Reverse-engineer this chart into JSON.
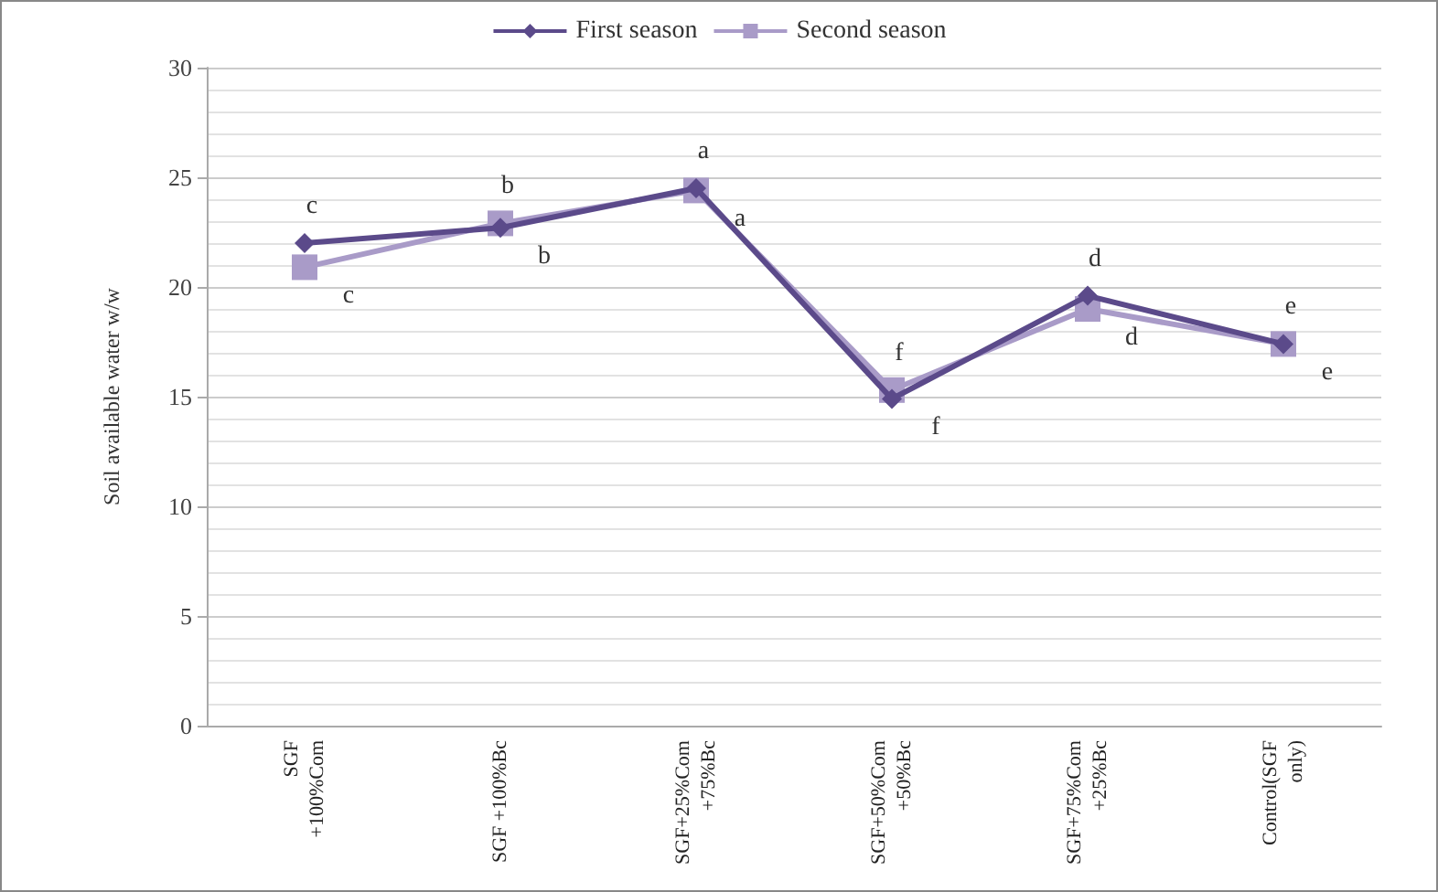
{
  "chart_data": {
    "type": "line",
    "ylabel": "Soil available water w/w",
    "categories": [
      "SGF\n+100%Com",
      "SGF +100%Bc",
      "SGF+25%Com\n+75%Bc",
      "SGF+50%Com\n+50%Bc",
      "SGF+75%Com\n+25%Bc",
      "Control(SGF\nonly)"
    ],
    "series": [
      {
        "name": "First season",
        "color": "#5b4a8a",
        "marker": "diamond",
        "values": [
          22.0,
          22.7,
          24.5,
          14.9,
          19.6,
          17.4
        ]
      },
      {
        "name": "Second season",
        "color": "#a99bc8",
        "marker": "square",
        "values": [
          20.9,
          22.9,
          24.4,
          15.3,
          19.0,
          17.4
        ]
      }
    ],
    "ylim": [
      0,
      30
    ],
    "yticks": [
      0,
      5,
      10,
      15,
      20,
      25,
      30
    ],
    "grid": "y",
    "legend": "top",
    "annotations": [
      {
        "text": "c",
        "x": "SGF\n+100%Com",
        "y": 22.0
      },
      {
        "text": "b",
        "x": "SGF +100%Bc",
        "y": 22.7
      },
      {
        "text": "a",
        "x": "SGF+25%Com\n+75%Bc",
        "y": 24.5
      },
      {
        "text": "f",
        "x": "SGF+50%Com\n+50%Bc",
        "y": 14.9
      },
      {
        "text": "d",
        "x": "SGF+75%Com\n+25%Bc",
        "y": 19.6
      },
      {
        "text": "e",
        "x": "Control(SGF\nonly)",
        "y": 17.4
      },
      {
        "text": "c",
        "x": "SGF\n+100%Com",
        "y": 20.9
      },
      {
        "text": "b",
        "x": "SGF +100%Bc",
        "y": 22.9
      },
      {
        "text": "a",
        "x": "SGF+25%Com\n+75%Bc",
        "y": 24.4
      },
      {
        "text": "f",
        "x": "SGF+50%Com\n+50%Bc",
        "y": 15.3
      },
      {
        "text": "d",
        "x": "SGF+75%Com\n+25%Bc",
        "y": 19.0
      },
      {
        "text": "e",
        "x": "Control(SGF\nonly)",
        "y": 17.4
      }
    ]
  }
}
